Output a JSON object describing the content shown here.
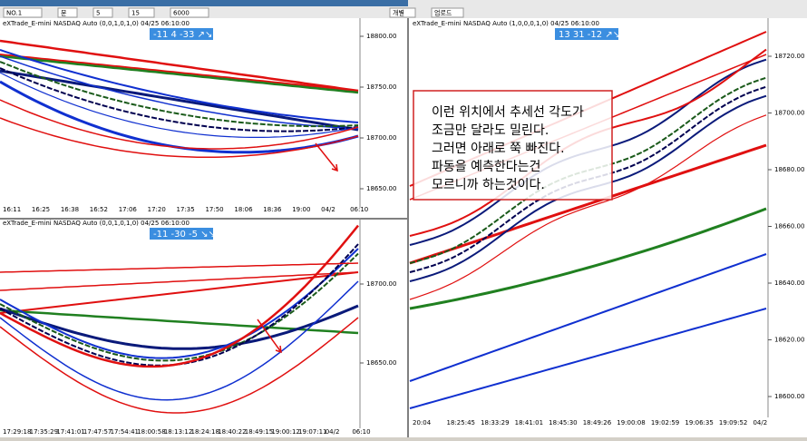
{
  "toolbar": {
    "items": [
      "NO.1",
      "분",
      "5",
      "15",
      "6000",
      "개별",
      "업로드"
    ]
  },
  "panels": [
    {
      "header": "eXTrade_E-mini NASDAQ Auto (0,0,1,0,1,0) 04/25 06:10:00",
      "badge": "-11  4  -33  ↗↘",
      "price_ticks": [
        "18800.00",
        "18750.00",
        "18700.00",
        "18650.00"
      ],
      "time_ticks": [
        "16:11",
        "16:25",
        "16:38",
        "16:52",
        "17:06",
        "17:20",
        "17:35",
        "17:50",
        "18:06",
        "18:36",
        "19:00",
        "04/2",
        "06:10"
      ]
    },
    {
      "header": "eXTrade_E-mini NASDAQ Auto (0,0,1,0,1,0) 04/25 06:10:00",
      "badge": "-11  -30  -5  ↘↘",
      "price_ticks": [
        "18700.00",
        "18650.00"
      ],
      "time_ticks": [
        "17:29:18",
        "17:35:29",
        "17:41:01",
        "17:47:57",
        "17:54:41",
        "18:00:58",
        "18:13:12",
        "18:24:18",
        "18:40:22",
        "18:49:15",
        "19:00:12",
        "19:07:11",
        "04/2",
        "06:10"
      ]
    },
    {
      "header": "eXTrade_E-mini NASDAQ Auto (1,0,0,0,1,0) 04/25 06:10:00",
      "badge": "13  31  -12  ↗↘",
      "price_ticks": [
        "18720.00",
        "18700.00",
        "18680.00",
        "18660.00",
        "18640.00",
        "18620.00",
        "18600.00"
      ],
      "time_ticks": [
        "20:04",
        "18:25:45",
        "18:33:29",
        "18:41:01",
        "18:45:30",
        "18:49:26",
        "19:00:08",
        "19:02:59",
        "19:06:35",
        "19:09:52",
        "04/2"
      ]
    }
  ],
  "annotation": {
    "lines": [
      "이런 위치에서 추세선 각도가",
      "조금만 달라도 밀린다.",
      "그러면 아래로 쭉 빠진다.",
      "파동을 예측한다는건",
      "모르니까 하는것이다."
    ]
  }
}
